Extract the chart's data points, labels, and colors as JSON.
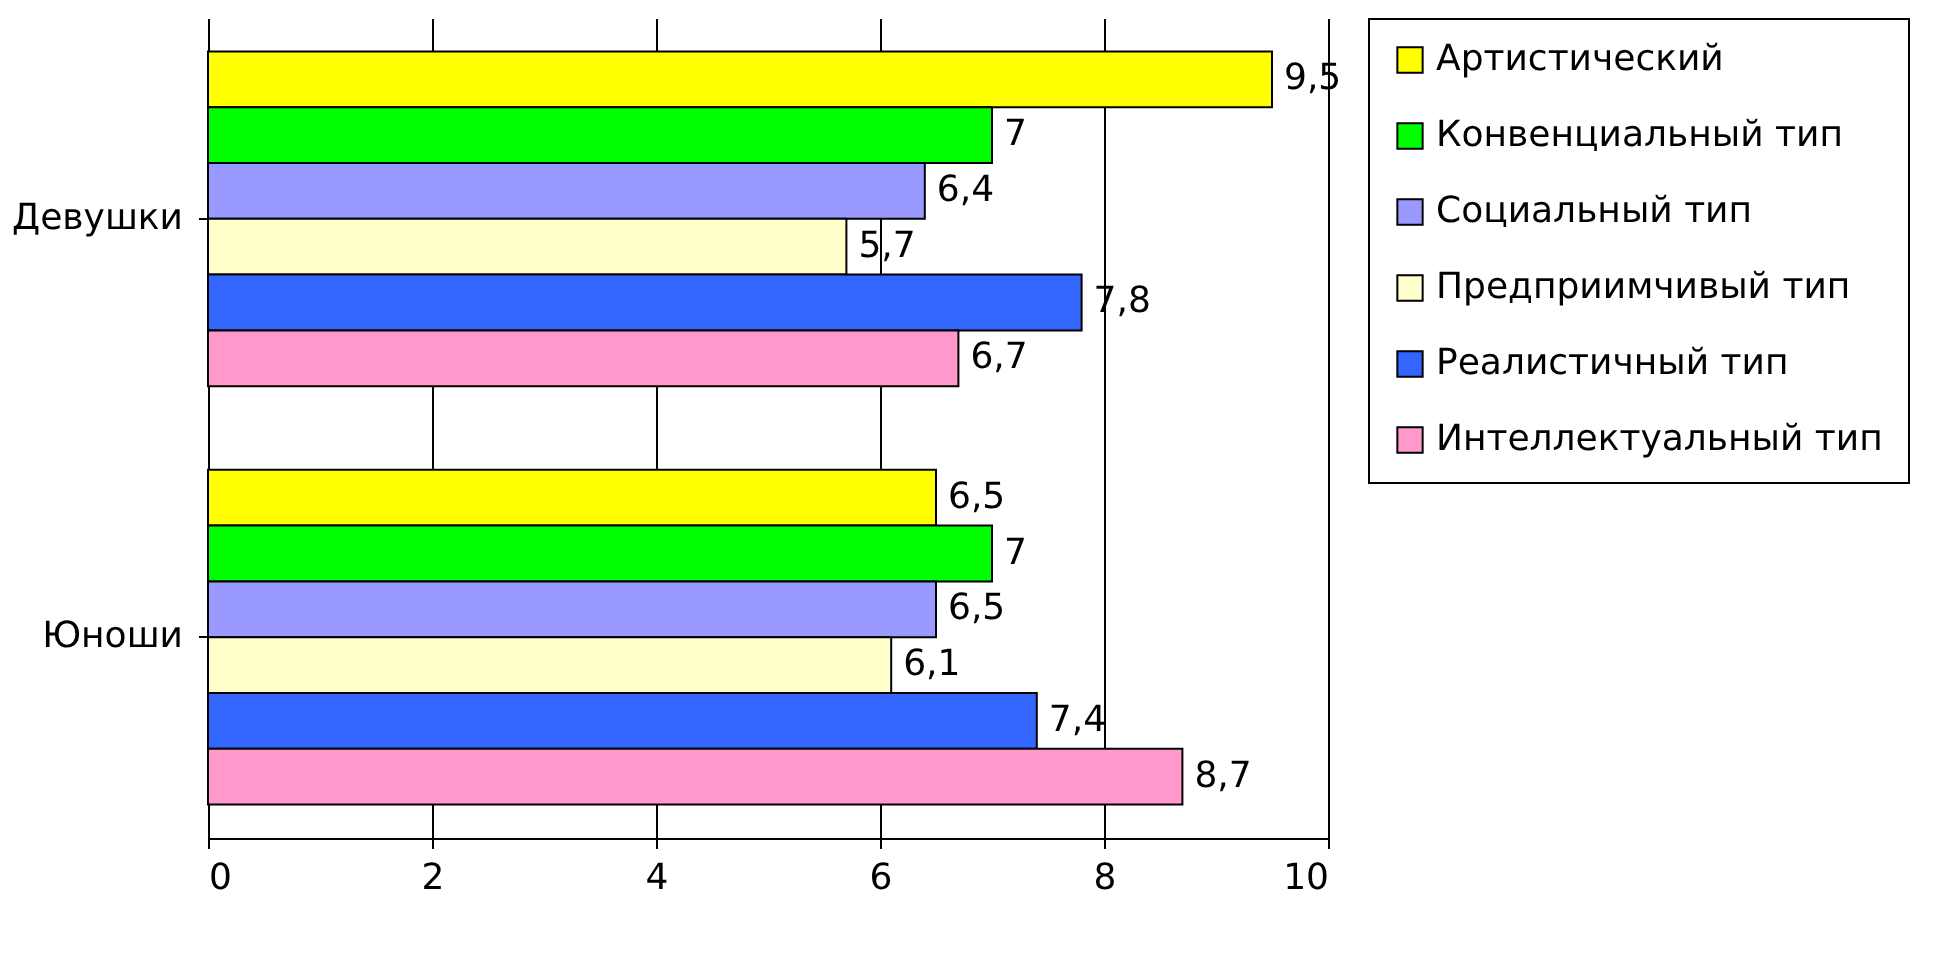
{
  "chart_data": {
    "type": "bar",
    "orientation": "horizontal",
    "categories": [
      "Девушки",
      "Юноши"
    ],
    "series": [
      {
        "name": "Артистический",
        "color": "#ffff00",
        "values": [
          9.5,
          6.5
        ],
        "value_labels": [
          "9,5",
          "6,5"
        ]
      },
      {
        "name": "Конвенциальный тип",
        "color": "#00ff00",
        "values": [
          7,
          7
        ],
        "value_labels": [
          "7",
          "7"
        ]
      },
      {
        "name": "Социальный тип",
        "color": "#9999ff",
        "values": [
          6.4,
          6.5
        ],
        "value_labels": [
          "6,4",
          "6,5"
        ]
      },
      {
        "name": "Предприимчивый тип",
        "color": "#ffffcc",
        "values": [
          5.7,
          6.1
        ],
        "value_labels": [
          "5,7",
          "6,1"
        ]
      },
      {
        "name": "Реалистичный тип",
        "color": "#3366ff",
        "values": [
          7.8,
          7.4
        ],
        "value_labels": [
          "7,8",
          "7,4"
        ]
      },
      {
        "name": "Интеллектуальный тип",
        "color": "#ff99cc",
        "values": [
          6.7,
          8.7
        ],
        "value_labels": [
          "6,7",
          "8,7"
        ]
      }
    ],
    "xlim": [
      0,
      10
    ],
    "xticks": [
      0,
      2,
      4,
      6,
      8,
      10
    ],
    "grid": "x",
    "legend": "right"
  }
}
